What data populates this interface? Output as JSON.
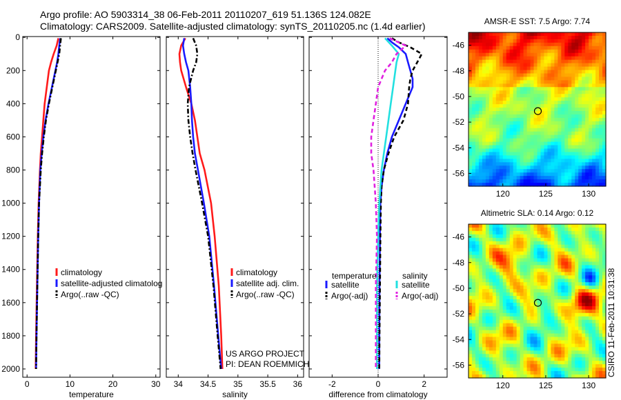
{
  "header": {
    "line1": "Argo profile: AO 5903314_38 06-Feb-2011 20110207_619 51.136S 124.082E",
    "line2": "Climatology: CARS2009. Satellite-adjusted climatology: synTS_20110205.nc (1.4d earlier)"
  },
  "side_label": "CSIRO 11-Feb-2011 10:31:38",
  "credit": {
    "line1": "US ARGO PROJECT",
    "line2": "PI: DEAN ROEMMICH"
  },
  "colors": {
    "climatology": "#ff1a1a",
    "satellite": "#1a1aff",
    "argo": "#000000",
    "sat_salinity": "#22e0e0",
    "argo_salinity": "#e020e0"
  },
  "chart_data": [
    {
      "type": "line",
      "panel": "temperature",
      "xlabel": "temperature",
      "ylabel": "",
      "xlim": [
        -1,
        31
      ],
      "ylim": [
        2050,
        -5
      ],
      "xticks": [
        0,
        10,
        20,
        30
      ],
      "yticks": [
        0,
        200,
        400,
        600,
        800,
        1000,
        1200,
        1400,
        1600,
        1800,
        2000
      ],
      "legend": {
        "placement": "bottom-right",
        "entries": [
          "climatology",
          "satellite-adjusted climatolog",
          "Argo(..raw -QC)"
        ]
      },
      "series": [
        {
          "name": "climatology",
          "style": "solid",
          "color": "#ff1a1a",
          "depth": [
            5,
            50,
            100,
            150,
            200,
            300,
            400,
            500,
            600,
            700,
            800,
            1000,
            1200,
            1500,
            1800,
            2000
          ],
          "values": [
            7.3,
            6.9,
            6.2,
            5.6,
            5.1,
            4.6,
            4.1,
            3.8,
            3.5,
            3.2,
            3.0,
            2.7,
            2.5,
            2.3,
            2.1,
            2.0
          ]
        },
        {
          "name": "satellite-adjusted climatolog",
          "style": "solid",
          "color": "#1a1aff",
          "depth": [
            5,
            50,
            100,
            150,
            200,
            300,
            400,
            500,
            600,
            700,
            800,
            1000,
            1200,
            1500,
            1800,
            2000
          ],
          "values": [
            7.7,
            7.5,
            7.3,
            7.0,
            6.6,
            5.8,
            5.0,
            4.3,
            3.8,
            3.4,
            3.1,
            2.8,
            2.6,
            2.4,
            2.2,
            2.1
          ]
        },
        {
          "name": "Argo(..raw -QC)",
          "style": "dashdot",
          "color": "#000000",
          "depth": [
            5,
            50,
            100,
            150,
            200,
            300,
            400,
            500,
            600,
            700,
            800,
            1000,
            1200,
            1500,
            1800,
            2000
          ],
          "values": [
            7.9,
            7.7,
            7.5,
            7.1,
            6.7,
            5.9,
            5.1,
            4.4,
            3.9,
            3.5,
            3.2,
            2.8,
            2.6,
            2.4,
            2.2,
            2.1
          ]
        }
      ]
    },
    {
      "type": "line",
      "panel": "salinity",
      "xlabel": "salinity",
      "xlim": [
        33.8,
        36.1
      ],
      "ylim": [
        2050,
        -5
      ],
      "xticks": [
        34,
        34.5,
        35,
        35.5,
        36
      ],
      "legend": {
        "placement": "bottom-right",
        "entries": [
          "climatology",
          "satellite adj. clim.",
          "Argo(..raw -QC)"
        ]
      },
      "series": [
        {
          "name": "climatology",
          "style": "solid",
          "color": "#ff1a1a",
          "depth": [
            5,
            50,
            100,
            150,
            200,
            300,
            400,
            500,
            600,
            700,
            800,
            1000,
            1200,
            1500,
            1800,
            2000
          ],
          "values": [
            34.12,
            34.05,
            34.02,
            34.03,
            34.05,
            34.13,
            34.22,
            34.28,
            34.32,
            34.36,
            34.44,
            34.55,
            34.61,
            34.68,
            34.72,
            34.74
          ]
        },
        {
          "name": "satellite adj. clim.",
          "style": "solid",
          "color": "#1a1aff",
          "depth": [
            5,
            50,
            100,
            150,
            200,
            300,
            400,
            500,
            600,
            700,
            800,
            1000,
            1200,
            1500,
            1800,
            2000
          ],
          "values": [
            34.1,
            34.08,
            34.1,
            34.13,
            34.17,
            34.2,
            34.22,
            34.23,
            34.25,
            34.28,
            34.33,
            34.43,
            34.52,
            34.6,
            34.67,
            34.72
          ]
        },
        {
          "name": "Argo(..raw -QC)",
          "style": "dashdot",
          "color": "#000000",
          "depth": [
            5,
            50,
            100,
            150,
            200,
            300,
            400,
            500,
            600,
            700,
            800,
            1000,
            1200,
            1500,
            1800,
            2000
          ],
          "values": [
            34.25,
            34.3,
            34.32,
            34.3,
            34.25,
            34.18,
            34.16,
            34.17,
            34.2,
            34.24,
            34.29,
            34.4,
            34.5,
            34.59,
            34.66,
            34.71
          ]
        }
      ]
    },
    {
      "type": "line",
      "panel": "difference",
      "xlabel": "difference from climatology",
      "xlim": [
        -3,
        3
      ],
      "ylim": [
        2050,
        -5
      ],
      "xticks": [
        -2,
        0,
        2
      ],
      "legend": {
        "placement": "bottom",
        "columns": [
          {
            "title": "temperature",
            "entries": [
              "satellite",
              "Argo(-adj)"
            ]
          },
          {
            "title": "salinity",
            "entries": [
              "satellite",
              "Argo(-adj)"
            ]
          }
        ]
      },
      "series": [
        {
          "name": "temperature satellite",
          "style": "solid",
          "color": "#1a1aff",
          "depth": [
            5,
            30,
            60,
            100,
            150,
            200,
            250,
            300,
            400,
            500,
            600,
            700,
            800,
            900,
            1000,
            1200,
            1500,
            1800,
            2000
          ],
          "values": [
            0.4,
            0.6,
            0.9,
            1.2,
            1.3,
            1.4,
            1.5,
            1.5,
            1.2,
            0.9,
            0.6,
            0.4,
            0.25,
            0.15,
            0.1,
            0.08,
            0.06,
            0.05,
            0.05
          ]
        },
        {
          "name": "temperature Argo(-adj)",
          "style": "dashed",
          "color": "#000000",
          "depth": [
            5,
            30,
            60,
            100,
            150,
            200,
            250,
            300,
            400,
            500,
            600,
            700,
            800,
            900,
            1000,
            1200,
            1500,
            1800,
            2000
          ],
          "values": [
            0.6,
            0.9,
            1.4,
            1.9,
            1.7,
            1.5,
            1.4,
            1.35,
            1.3,
            1.1,
            0.7,
            0.45,
            0.25,
            0.15,
            0.12,
            0.1,
            0.08,
            0.06,
            0.05
          ]
        },
        {
          "name": "salinity satellite",
          "style": "solid",
          "color": "#22e0e0",
          "depth": [
            5,
            50,
            100,
            150,
            200,
            300,
            400,
            500,
            600,
            700,
            800,
            1000,
            1200,
            1500,
            1800,
            2000
          ],
          "values": [
            0.3,
            0.6,
            0.9,
            0.8,
            0.75,
            0.65,
            0.55,
            0.45,
            0.35,
            0.25,
            0.15,
            0.05,
            0.0,
            -0.05,
            -0.05,
            -0.05
          ]
        },
        {
          "name": "salinity Argo(-adj)",
          "style": "dashed",
          "color": "#e020e0",
          "depth": [
            5,
            50,
            100,
            150,
            200,
            300,
            400,
            500,
            600,
            700,
            800,
            1000,
            1200,
            1500,
            1800,
            2000
          ],
          "values": [
            0.5,
            1.2,
            0.8,
            0.6,
            0.3,
            0.0,
            -0.1,
            -0.2,
            -0.3,
            -0.3,
            -0.2,
            -0.1,
            -0.05,
            -0.1,
            -0.1,
            -0.1
          ]
        }
      ]
    },
    {
      "type": "heatmap",
      "panel": "sst-map",
      "title": "AMSR-E SST: 7.5 Argo: 7.74",
      "xlim": [
        116,
        132
      ],
      "ylim": [
        -57,
        -45
      ],
      "xticks": [
        120,
        125,
        130
      ],
      "yticks": [
        -46,
        -48,
        -50,
        -52,
        -54,
        -56
      ],
      "marker": {
        "lon": 124.08,
        "lat": -51.14
      }
    },
    {
      "type": "heatmap",
      "panel": "sla-map",
      "title": "Altimetric SLA: 0.14 Argo: 0.12",
      "xlim": [
        116,
        132
      ],
      "ylim": [
        -57,
        -45
      ],
      "xticks": [
        120,
        125,
        130
      ],
      "yticks": [
        -46,
        -48,
        -50,
        -52,
        -54,
        -56
      ],
      "marker": {
        "lon": 124.08,
        "lat": -51.14
      }
    }
  ]
}
